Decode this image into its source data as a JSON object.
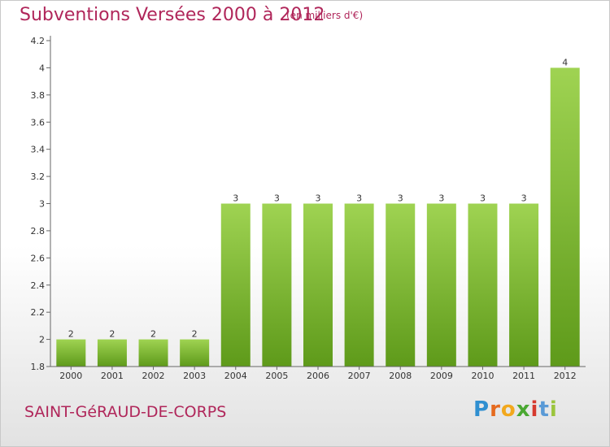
{
  "title": "Subventions Versées 2000 à 2012",
  "subtitle": "(en milliers d'€)",
  "commune": "SAINT-GéRAUD-DE-CORPS",
  "logo": {
    "letters": [
      "P",
      "r",
      "o",
      "x",
      "i",
      "t",
      "i"
    ],
    "colors": [
      "#2f8fd0",
      "#e56a1e",
      "#f2a81d",
      "#4aa832",
      "#d63a2f",
      "#5a9ad6",
      "#9bc53d"
    ]
  },
  "colors": {
    "bar_top": "#9fd352",
    "bar_bottom": "#5e9a1a",
    "axis": "#666666",
    "title": "#b0265a"
  },
  "chart_data": {
    "type": "bar",
    "categories": [
      "2000",
      "2001",
      "2002",
      "2003",
      "2004",
      "2005",
      "2006",
      "2007",
      "2008",
      "2009",
      "2010",
      "2011",
      "2012"
    ],
    "values": [
      2,
      2,
      2,
      2,
      3,
      3,
      3,
      3,
      3,
      3,
      3,
      3,
      4
    ],
    "data_labels": [
      "2",
      "2",
      "2",
      "2",
      "3",
      "3",
      "3",
      "3",
      "3",
      "3",
      "3",
      "3",
      "4"
    ],
    "yticks": [
      "1.8",
      "2",
      "2.2",
      "2.4",
      "2.6",
      "2.8",
      "3",
      "3.2",
      "3.4",
      "3.6",
      "3.8",
      "4",
      "4.2"
    ],
    "ylim": [
      1.8,
      4.2
    ],
    "grid": false
  }
}
